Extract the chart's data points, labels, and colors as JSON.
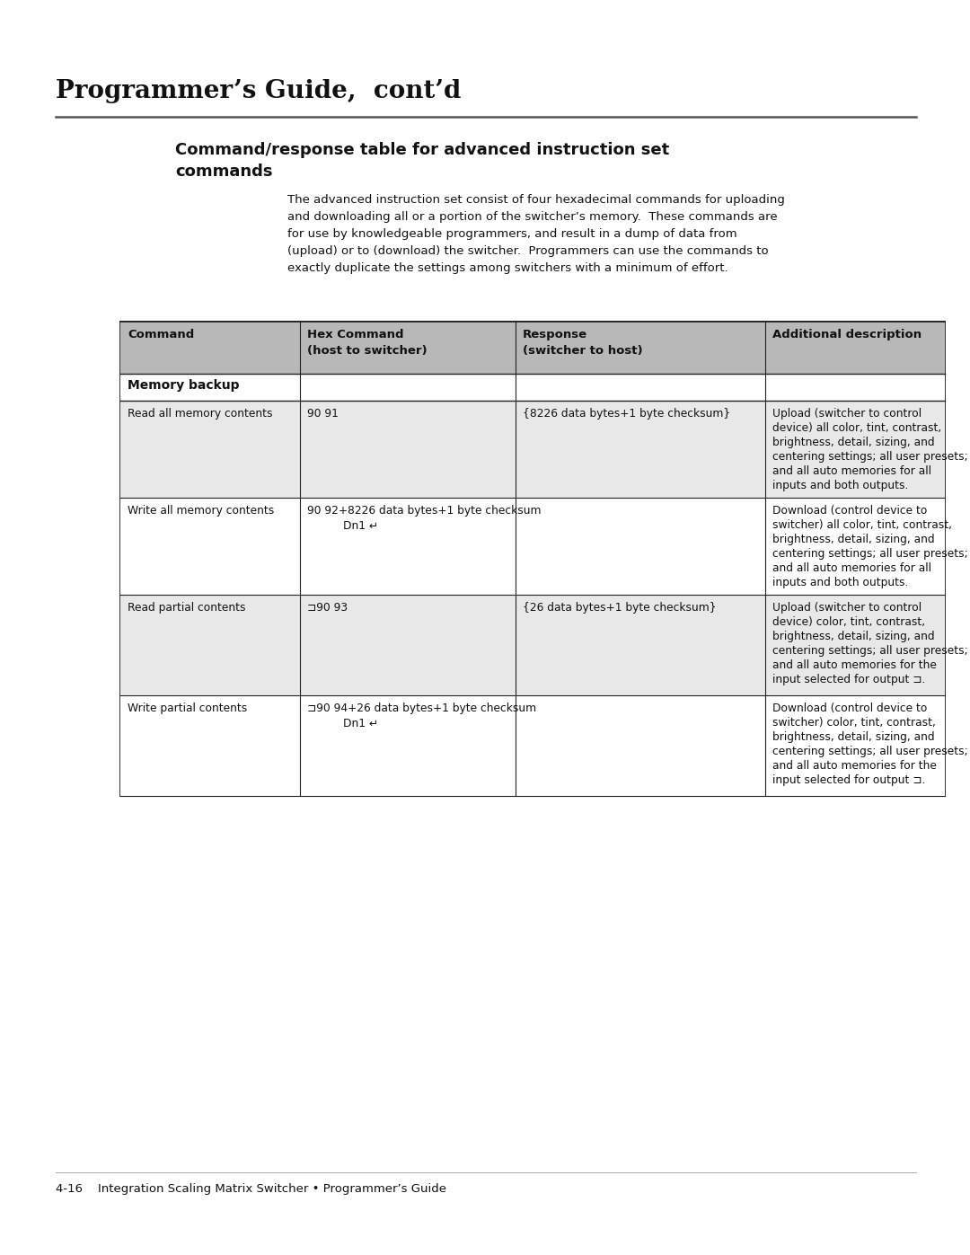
{
  "page_title": "Programmer’s Guide,  cont’d",
  "section_title_line1": "Command/response table for advanced instruction set",
  "section_title_line2": "commands",
  "intro_text": "The advanced instruction set consist of four hexadecimal commands for uploading\nand downloading all or a portion of the switcher’s memory.  These commands are\nfor use by knowledgeable programmers, and result in a dump of data from\n(upload) or to (download) the switcher.  Programmers can use the commands to\nexactly duplicate the settings among switchers with a minimum of effort.",
  "table_headers": [
    "Command",
    "Hex Command",
    "(host to switcher)",
    "Response",
    "(switcher to host)",
    "Additional description"
  ],
  "section_label": "Memory backup",
  "rows": [
    {
      "command": "Read all memory contents",
      "hex_lines": [
        "90 91"
      ],
      "response": "{8226 data bytes+1 byte checksum}",
      "desc_lines": [
        "Upload (switcher to control",
        "device) all color, tint, contrast,",
        "brightness, detail, sizing, and",
        "centering settings; all user presets;",
        "and all auto memories for all",
        "inputs and both outputs."
      ],
      "shaded": true
    },
    {
      "command": "Write all memory contents",
      "hex_lines": [
        "90 92+8226 data bytes+1 byte checksum",
        "Dn1 ↵"
      ],
      "response": "",
      "desc_lines": [
        "Download (control device to",
        "switcher) all color, tint, contrast,",
        "brightness, detail, sizing, and",
        "centering settings; all user presets;",
        "and all auto memories for all",
        "inputs and both outputs."
      ],
      "shaded": false
    },
    {
      "command": "Read partial contents",
      "hex_lines": [
        "⊐90 93"
      ],
      "response": "{26 data bytes+1 byte checksum}",
      "desc_lines": [
        "Upload (switcher to control",
        "device) color, tint, contrast,",
        "brightness, detail, sizing, and",
        "centering settings; all user presets;",
        "and all auto memories for the",
        "input selected for output ⊐."
      ],
      "shaded": true
    },
    {
      "command": "Write partial contents",
      "hex_lines": [
        "⊐90 94+26 data bytes+1 byte checksum",
        "Dn1 ↵"
      ],
      "response": "",
      "desc_lines": [
        "Download (control device to",
        "switcher) color, tint, contrast,",
        "brightness, detail, sizing, and",
        "centering settings; all user presets;",
        "and all auto memories for the",
        "input selected for output ⊐."
      ],
      "shaded": false
    }
  ],
  "footer": "4-16    Integration Scaling Matrix Switcher • Programmer’s Guide",
  "bg_color": "#ffffff",
  "header_bg": "#b8b8b8",
  "shaded_bg": "#e8e8e8",
  "border_color": "#222222",
  "text_color": "#111111"
}
